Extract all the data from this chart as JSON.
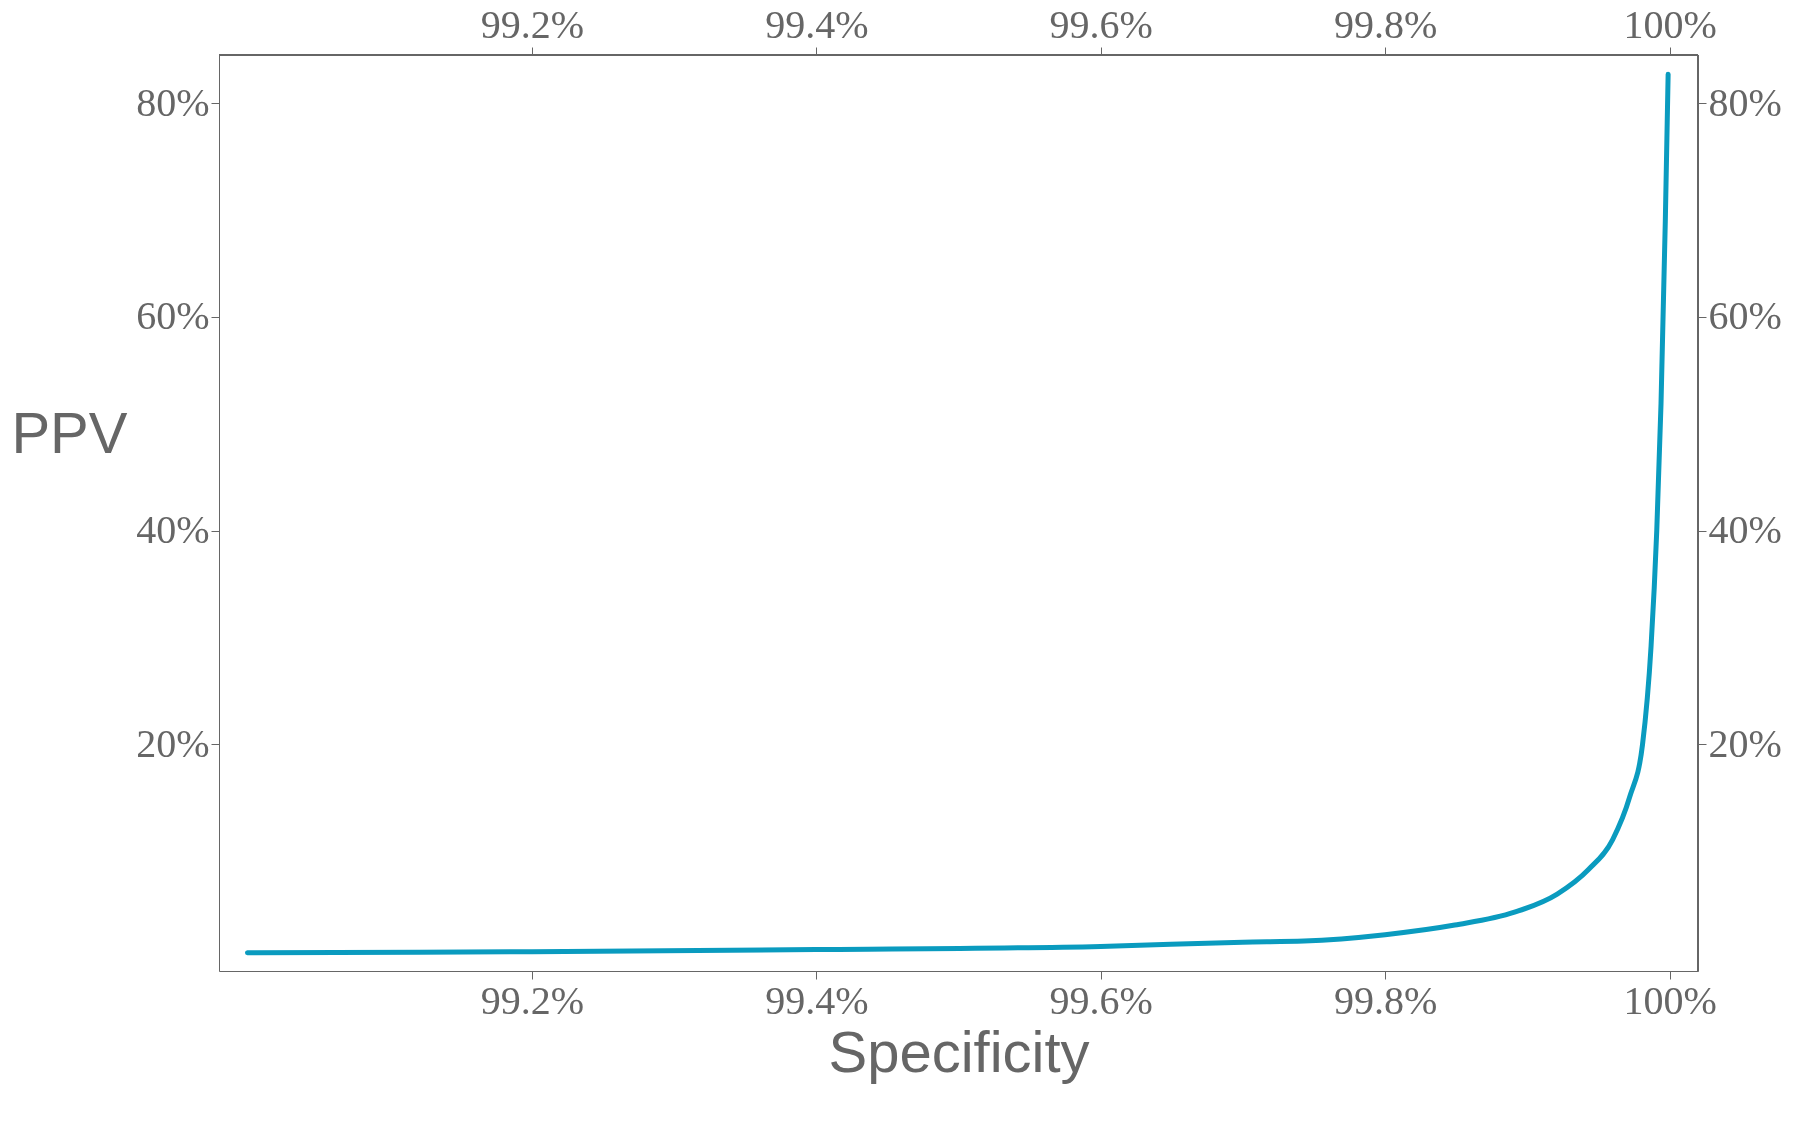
{
  "chart_data": {
    "type": "line",
    "xlabel": "Specificity",
    "ylabel": "PPV",
    "x": [
      99.0,
      99.2,
      99.4,
      99.6,
      99.7,
      99.743,
      99.8,
      99.849,
      99.891,
      99.921,
      99.943,
      99.96,
      99.972,
      99.981,
      99.987,
      99.991,
      99.994,
      99.997,
      99.999
    ],
    "series": [
      {
        "color": "#0a9bbf",
        "values": [
          0.5,
          0.6,
          0.8,
          1.1,
          1.5,
          1.6,
          2.2,
          3.1,
          4.3,
          6.0,
          8.3,
          11.1,
          15.1,
          20,
          29.2,
          40,
          51.9,
          68.9,
          82.7
        ]
      }
    ],
    "xlim": [
      98.98,
      100.02
    ],
    "xticks": [
      {
        "value": 99.2,
        "label": "99.2%"
      },
      {
        "value": 99.4,
        "label": "99.4%"
      },
      {
        "value": 99.6,
        "label": "99.6%"
      },
      {
        "value": 99.8,
        "label": "99.8%"
      },
      {
        "value": 100,
        "label": "100%"
      }
    ],
    "x2lim": [
      98.98,
      100.02
    ],
    "x2ticks": [
      {
        "value": 99.2,
        "label": "99.2%"
      },
      {
        "value": 99.4,
        "label": "99.4%"
      },
      {
        "value": 99.6,
        "label": "99.6%"
      },
      {
        "value": 99.8,
        "label": "99.8%"
      },
      {
        "value": 100,
        "label": "100%"
      }
    ],
    "ylim": [
      -1.2,
      84.5
    ],
    "yticks": [
      {
        "value": 20,
        "label": "20%"
      },
      {
        "value": 40,
        "label": "40%"
      },
      {
        "value": 60,
        "label": "60%"
      },
      {
        "value": 80,
        "label": "80%"
      }
    ],
    "y2lim": [
      -1.2,
      84.5
    ],
    "y2ticks": [
      {
        "value": 20,
        "label": "20%"
      },
      {
        "value": 40,
        "label": "40%"
      },
      {
        "value": 60,
        "label": "60%"
      },
      {
        "value": 80,
        "label": "80%"
      }
    ],
    "grid": false,
    "marker": "none",
    "line_style": "solid"
  }
}
